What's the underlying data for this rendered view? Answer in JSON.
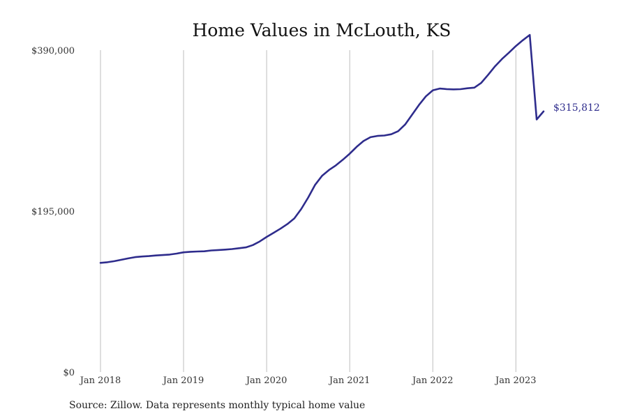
{
  "chart_data": {
    "type": "line",
    "title": "Home Values in McLouth, KS",
    "source": "Source: Zillow. Data represents monthly typical home value",
    "ylim": [
      0,
      390000
    ],
    "y_ticks": [
      {
        "value": 0,
        "label": "$0"
      },
      {
        "value": 195000,
        "label": "$195,000"
      },
      {
        "value": 390000,
        "label": "$390,000"
      }
    ],
    "x_range": [
      "2018-01",
      "2023-05"
    ],
    "x_ticks": [
      {
        "value": "2018-01",
        "label": "Jan 2018"
      },
      {
        "value": "2019-01",
        "label": "Jan 2019"
      },
      {
        "value": "2020-01",
        "label": "Jan 2020"
      },
      {
        "value": "2021-01",
        "label": "Jan 2021"
      },
      {
        "value": "2022-01",
        "label": "Jan 2022"
      },
      {
        "value": "2023-01",
        "label": "Jan 2023"
      }
    ],
    "grid": {
      "vertical": true,
      "horizontal": false
    },
    "line_color": "#2e2c8c",
    "end_label": "$315,812",
    "series": [
      {
        "x": [
          "2018-01",
          "2018-02",
          "2018-03",
          "2018-04",
          "2018-05",
          "2018-06",
          "2018-07",
          "2018-08",
          "2018-09",
          "2018-10",
          "2018-11",
          "2018-12",
          "2019-01",
          "2019-02",
          "2019-03",
          "2019-04",
          "2019-05",
          "2019-06",
          "2019-07",
          "2019-08",
          "2019-09",
          "2019-10",
          "2019-11",
          "2019-12",
          "2020-01",
          "2020-02",
          "2020-03",
          "2020-04",
          "2020-05",
          "2020-06",
          "2020-07",
          "2020-08",
          "2020-09",
          "2020-10",
          "2020-11",
          "2020-12",
          "2021-01",
          "2021-02",
          "2021-03",
          "2021-04",
          "2021-05",
          "2021-06",
          "2021-07",
          "2021-08",
          "2021-09",
          "2021-10",
          "2021-11",
          "2021-12",
          "2022-01",
          "2022-02",
          "2022-03",
          "2022-04",
          "2022-05",
          "2022-06",
          "2022-07",
          "2022-08",
          "2022-09",
          "2022-10",
          "2022-11",
          "2022-12",
          "2023-01",
          "2023-02",
          "2023-03",
          "2023-04",
          "2023-05"
        ],
        "values": [
          132300,
          133000,
          134300,
          136000,
          137700,
          139200,
          140000,
          140500,
          141200,
          141700,
          142300,
          143500,
          145000,
          145700,
          146000,
          146300,
          147300,
          147800,
          148300,
          149000,
          150000,
          151000,
          153800,
          158200,
          163700,
          168600,
          173700,
          179300,
          186100,
          197500,
          211500,
          226800,
          237700,
          244700,
          250400,
          257200,
          264600,
          272800,
          279900,
          284600,
          286100,
          286600,
          288100,
          291800,
          299900,
          311700,
          323600,
          334000,
          341400,
          343500,
          342800,
          342500,
          342700,
          343800,
          344600,
          350400,
          360200,
          370500,
          379400,
          387000,
          395000,
          402000,
          408500,
          306000,
          315812
        ]
      }
    ]
  }
}
